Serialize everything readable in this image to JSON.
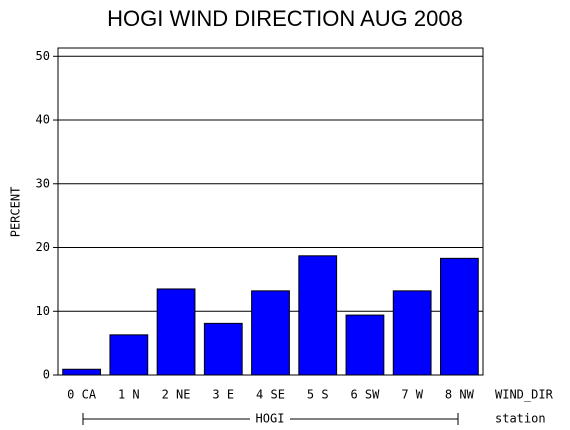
{
  "chart_data": {
    "type": "bar",
    "title": "HOGI WIND DIRECTION AUG 2008",
    "y_label": "PERCENT",
    "x_label": "WIND_DIR",
    "group_label": "HOGI",
    "group_axis_label": "station",
    "categories": [
      "0 CA",
      "1 N",
      "2 NE",
      "3 E",
      "4 SE",
      "5 S",
      "6 SW",
      "7 W",
      "8 NW"
    ],
    "values": [
      0.9,
      6.3,
      13.5,
      8.1,
      13.2,
      18.7,
      9.4,
      13.2,
      18.3
    ],
    "color": "#0000ff",
    "ylim": [
      0,
      51.3
    ],
    "yticks": [
      0,
      10,
      20,
      30,
      40,
      50
    ],
    "grid": true
  }
}
